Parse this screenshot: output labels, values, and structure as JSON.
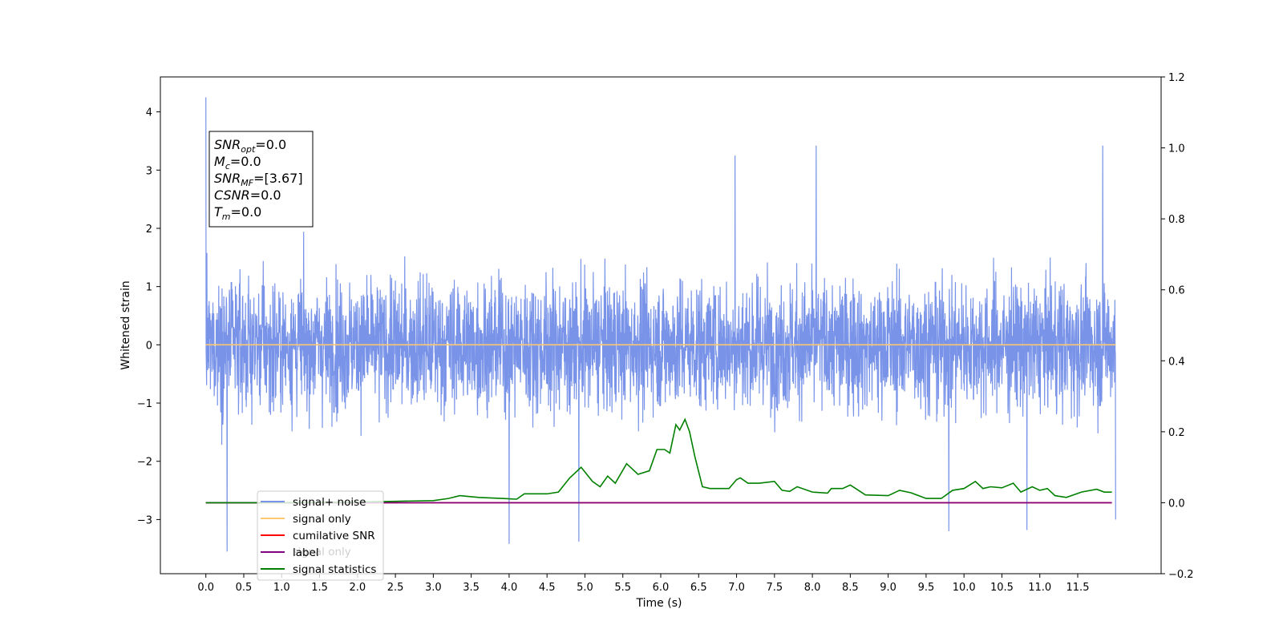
{
  "chart_data": {
    "type": "line",
    "xlabel": "Time (s)",
    "ylabel": "Whitened strain",
    "xlim": [
      -0.6,
      12.6
    ],
    "ylim": [
      -3.93,
      4.6
    ],
    "y2lim": [
      -0.2,
      1.2
    ],
    "x_ticks": [
      "0.0",
      "0.5",
      "1.0",
      "1.5",
      "2.0",
      "2.5",
      "3.0",
      "3.5",
      "4.0",
      "4.5",
      "5.0",
      "5.5",
      "6.0",
      "6.5",
      "7.0",
      "7.5",
      "8.0",
      "8.5",
      "9.0",
      "9.5",
      "10.0",
      "10.5",
      "11.0",
      "11.5"
    ],
    "y_ticks": [
      "4",
      "3",
      "2",
      "1",
      "0",
      "−1",
      "−2",
      "−3"
    ],
    "y2_ticks": [
      "1.2",
      "1.0",
      "0.8",
      "0.6",
      "0.4",
      "0.2",
      "0.0",
      "−0.2"
    ],
    "annotation": {
      "lines": [
        {
          "main": "SNR",
          "sub": "opt",
          "rest": "=0.0"
        },
        {
          "main": "M",
          "sub": "c",
          "rest": "=0.0"
        },
        {
          "main": "SNR",
          "sub": "MF",
          "rest": "=[3.67]"
        },
        {
          "main": "CSNR",
          "sub": "",
          "rest": "=0.0"
        },
        {
          "main": "T",
          "sub": "m",
          "rest": "=0.0"
        }
      ]
    },
    "legend": {
      "placement": "lower-left",
      "entries": [
        {
          "label": "signal+ noise",
          "color": "#7893e8"
        },
        {
          "label": "signal only",
          "color": "#ffc870"
        },
        {
          "label": "cumilative SNR",
          "color": "#ff0000"
        },
        {
          "label": "label",
          "color": "#800080"
        },
        {
          "label": "signal statistics",
          "color": "#008000"
        }
      ],
      "hidden_label": "signal only"
    },
    "series": [
      {
        "name": "signal+ noise",
        "axis": "left",
        "color": "#7893e8",
        "x_range": [
          0.0,
          12.0
        ],
        "envelope_typical": [
          -1.7,
          2.4
        ],
        "peaks": [
          {
            "x": 0.0,
            "y": 4.25
          },
          {
            "x": 0.28,
            "y": -3.55
          },
          {
            "x": 6.98,
            "y": 3.25
          },
          {
            "x": 8.05,
            "y": 3.42
          },
          {
            "x": 11.83,
            "y": 3.42
          },
          {
            "x": 4.0,
            "y": -3.42
          },
          {
            "x": 4.92,
            "y": -3.38
          },
          {
            "x": 10.83,
            "y": -3.18
          },
          {
            "x": 9.8,
            "y": -3.2
          },
          {
            "x": 12.0,
            "y": -3.0
          }
        ]
      },
      {
        "name": "signal only",
        "axis": "left",
        "color": "#ffc870",
        "x": [
          0.0,
          12.0
        ],
        "y": [
          0.0,
          0.0
        ]
      },
      {
        "name": "cumilative SNR",
        "axis": "right",
        "color": "#ff0000",
        "x": [
          0.0,
          11.95
        ],
        "y": [
          0.0,
          0.0
        ]
      },
      {
        "name": "label",
        "axis": "right",
        "color": "#800080",
        "x": [
          0.0,
          11.95
        ],
        "y": [
          0.0,
          0.0
        ]
      },
      {
        "name": "signal statistics",
        "axis": "right",
        "color": "#008000",
        "x": [
          0.0,
          1.0,
          2.0,
          2.5,
          3.0,
          3.2,
          3.35,
          3.6,
          3.9,
          4.1,
          4.2,
          4.5,
          4.65,
          4.8,
          4.95,
          5.1,
          5.2,
          5.3,
          5.4,
          5.55,
          5.7,
          5.85,
          5.95,
          6.05,
          6.12,
          6.2,
          6.25,
          6.32,
          6.38,
          6.45,
          6.55,
          6.65,
          6.9,
          7.0,
          7.05,
          7.15,
          7.3,
          7.5,
          7.6,
          7.7,
          7.8,
          8.0,
          8.2,
          8.25,
          8.4,
          8.5,
          8.7,
          9.0,
          9.15,
          9.3,
          9.5,
          9.7,
          9.85,
          10.0,
          10.15,
          10.25,
          10.35,
          10.5,
          10.65,
          10.75,
          10.9,
          11.0,
          11.1,
          11.2,
          11.35,
          11.55,
          11.75,
          11.85,
          11.95
        ],
        "y": [
          0.0,
          0.0,
          0.002,
          0.004,
          0.006,
          0.012,
          0.02,
          0.015,
          0.012,
          0.01,
          0.025,
          0.025,
          0.03,
          0.07,
          0.1,
          0.06,
          0.045,
          0.075,
          0.055,
          0.11,
          0.08,
          0.09,
          0.15,
          0.15,
          0.14,
          0.22,
          0.205,
          0.235,
          0.2,
          0.13,
          0.045,
          0.04,
          0.04,
          0.065,
          0.07,
          0.055,
          0.055,
          0.06,
          0.035,
          0.032,
          0.045,
          0.03,
          0.027,
          0.04,
          0.04,
          0.05,
          0.022,
          0.02,
          0.035,
          0.028,
          0.012,
          0.012,
          0.035,
          0.04,
          0.06,
          0.04,
          0.045,
          0.042,
          0.055,
          0.03,
          0.045,
          0.035,
          0.04,
          0.02,
          0.015,
          0.03,
          0.038,
          0.03,
          0.03
        ]
      }
    ]
  }
}
